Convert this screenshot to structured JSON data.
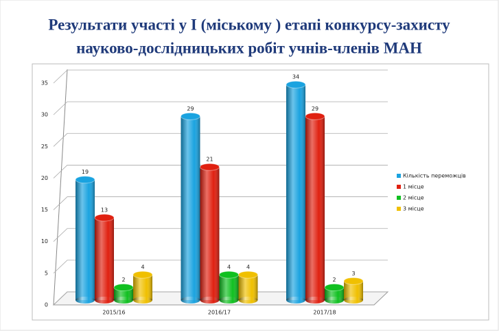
{
  "chart_data": {
    "type": "bar",
    "title_lines": [
      "Результати участі у І (міському ) етапі конкурсу-захисту",
      "науково-дослідницьких робіт учнів-членів МАН"
    ],
    "categories": [
      "2015/16",
      "2016/17",
      "2017/18"
    ],
    "series": [
      {
        "name": "Кількість переможців",
        "color": "#1aa3e0",
        "values": [
          19,
          29,
          34
        ]
      },
      {
        "name": "1 місце",
        "color": "#e02010",
        "values": [
          13,
          21,
          29
        ]
      },
      {
        "name": "2 місце",
        "color": "#10c020",
        "values": [
          2,
          4,
          2
        ]
      },
      {
        "name": "3 місце",
        "color": "#f0c000",
        "values": [
          4,
          4,
          3
        ]
      }
    ],
    "ylim": [
      0,
      35
    ],
    "yticks": [
      0,
      5,
      10,
      15,
      20,
      25,
      30,
      35
    ],
    "grid": true,
    "legend": "right"
  }
}
